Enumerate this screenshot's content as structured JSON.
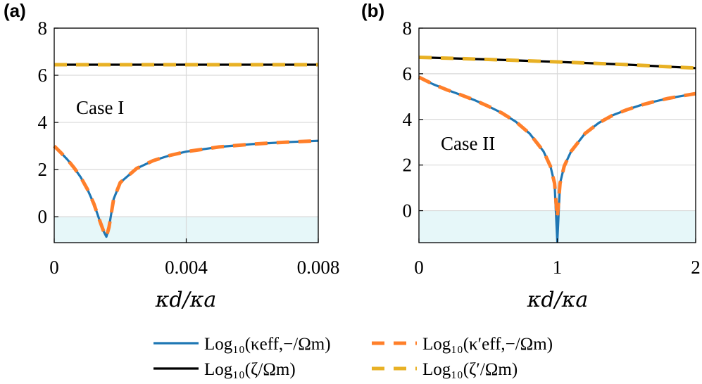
{
  "colors": {
    "blue": "#1f77b4",
    "orange": "#ff7f2a",
    "black": "#000000",
    "yellow": "#e8b125",
    "shade": "#e6f7f9",
    "grid": "#d9d9d9"
  },
  "legend": {
    "position": "bottom-center",
    "entries": [
      {
        "key": "kappa_eff",
        "label": "Log₁₀(κeff,−/Ωm)",
        "color": "#1f77b4",
        "style": "solid"
      },
      {
        "key": "kappa_eff_prime",
        "label": "Log₁₀(κ′eff,−/Ωm)",
        "color": "#ff7f2a",
        "style": "dashed"
      },
      {
        "key": "zeta",
        "label": "Log₁₀(ζ/Ωm)",
        "color": "#000000",
        "style": "solid"
      },
      {
        "key": "zeta_prime",
        "label": "Log₁₀(ζ′/Ωm)",
        "color": "#e8b125",
        "style": "dashed"
      }
    ]
  },
  "chart_data": [
    {
      "type": "line",
      "panel": "(a)",
      "annotation": "Case I",
      "xlabel": "κd/κa",
      "ylabel": "",
      "xlim": [
        0,
        0.008
      ],
      "ylim": [
        -1.1,
        8
      ],
      "xticks": [
        0,
        0.004,
        0.008
      ],
      "xtick_labels": [
        "0",
        "0.004",
        "0.008"
      ],
      "yticks": [
        0,
        2,
        4,
        6,
        8
      ],
      "ytick_labels": [
        "0",
        "2",
        "4",
        "6",
        "8"
      ],
      "grid": true,
      "shaded_region": {
        "y_from": -1.1,
        "y_to": 0
      },
      "series": [
        {
          "key": "kappa_eff",
          "x": [
            0,
            0.0002,
            0.0004,
            0.0006,
            0.0008,
            0.001,
            0.0012,
            0.0014,
            0.0015,
            0.00158,
            0.00166,
            0.0018,
            0.002,
            0.0025,
            0.003,
            0.0035,
            0.004,
            0.005,
            0.006,
            0.007,
            0.008
          ],
          "y": [
            3.0,
            2.72,
            2.42,
            2.08,
            1.68,
            1.18,
            0.55,
            -0.25,
            -0.63,
            -0.85,
            -0.45,
            0.75,
            1.45,
            2.05,
            2.38,
            2.6,
            2.76,
            2.96,
            3.08,
            3.16,
            3.22
          ]
        },
        {
          "key": "kappa_eff_prime",
          "x": [
            0,
            0.0002,
            0.0004,
            0.0006,
            0.0008,
            0.001,
            0.0012,
            0.0014,
            0.0015,
            0.00158,
            0.00166,
            0.0018,
            0.002,
            0.0025,
            0.003,
            0.0035,
            0.004,
            0.005,
            0.006,
            0.007,
            0.008
          ],
          "y": [
            3.0,
            2.72,
            2.42,
            2.08,
            1.68,
            1.18,
            0.55,
            -0.25,
            -0.63,
            -0.85,
            -0.45,
            0.75,
            1.45,
            2.05,
            2.38,
            2.6,
            2.76,
            2.96,
            3.08,
            3.16,
            3.22
          ]
        },
        {
          "key": "zeta",
          "x": [
            0,
            0.008
          ],
          "y": [
            6.45,
            6.45
          ]
        },
        {
          "key": "zeta_prime",
          "x": [
            0,
            0.008
          ],
          "y": [
            6.45,
            6.45
          ]
        }
      ]
    },
    {
      "type": "line",
      "panel": "(b)",
      "annotation": "Case II",
      "xlabel": "κd/κa",
      "ylabel": "",
      "xlim": [
        0,
        2
      ],
      "ylim": [
        -1.4,
        8
      ],
      "xticks": [
        0,
        1,
        2
      ],
      "xtick_labels": [
        "0",
        "1",
        "2"
      ],
      "yticks": [
        0,
        2,
        4,
        6,
        8
      ],
      "ytick_labels": [
        "0",
        "2",
        "4",
        "6",
        "8"
      ],
      "grid": true,
      "shaded_region": {
        "y_from": -1.4,
        "y_to": 0
      },
      "series": [
        {
          "key": "kappa_eff",
          "x": [
            0,
            0.1,
            0.2,
            0.3,
            0.4,
            0.5,
            0.6,
            0.7,
            0.8,
            0.9,
            0.95,
            0.98,
            1.0,
            1.02,
            1.05,
            1.1,
            1.2,
            1.3,
            1.4,
            1.5,
            1.6,
            1.7,
            1.8,
            1.9,
            2.0
          ],
          "y": [
            5.85,
            5.55,
            5.3,
            5.08,
            4.85,
            4.58,
            4.28,
            3.9,
            3.38,
            2.6,
            1.95,
            1.2,
            -1.35,
            1.2,
            1.95,
            2.6,
            3.38,
            3.85,
            4.18,
            4.42,
            4.62,
            4.78,
            4.92,
            5.03,
            5.13
          ]
        },
        {
          "key": "kappa_eff_prime",
          "x": [
            0,
            0.1,
            0.2,
            0.3,
            0.4,
            0.5,
            0.6,
            0.7,
            0.8,
            0.9,
            0.95,
            0.98,
            1.0,
            1.02,
            1.05,
            1.1,
            1.2,
            1.3,
            1.4,
            1.5,
            1.6,
            1.7,
            1.8,
            1.9,
            2.0
          ],
          "y": [
            5.85,
            5.55,
            5.3,
            5.08,
            4.85,
            4.58,
            4.28,
            3.9,
            3.38,
            2.6,
            1.95,
            1.2,
            -0.3,
            1.2,
            1.95,
            2.6,
            3.38,
            3.85,
            4.18,
            4.42,
            4.62,
            4.78,
            4.92,
            5.03,
            5.13
          ]
        },
        {
          "key": "zeta",
          "x": [
            0,
            0.5,
            1.0,
            1.5,
            2.0
          ],
          "y": [
            6.72,
            6.63,
            6.52,
            6.4,
            6.25
          ]
        },
        {
          "key": "zeta_prime",
          "x": [
            0,
            0.5,
            1.0,
            1.5,
            2.0
          ],
          "y": [
            6.72,
            6.63,
            6.52,
            6.4,
            6.25
          ]
        }
      ]
    }
  ]
}
